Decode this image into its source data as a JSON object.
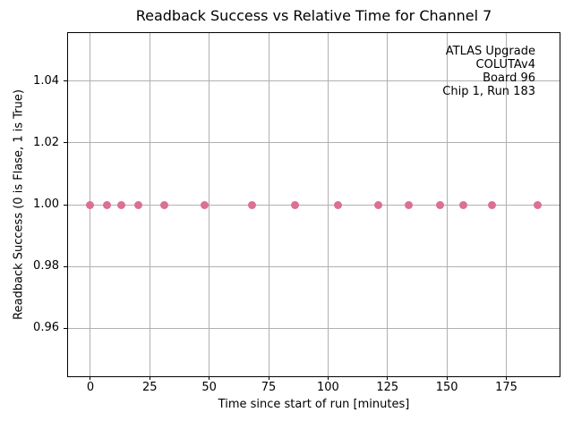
{
  "chart_data": {
    "type": "scatter",
    "title": "Readback Success vs Relative Time for Channel 7",
    "xlabel": "Time since start of run [minutes]",
    "ylabel": "Readback Success (0 is Flase, 1 is True)",
    "x": [
      0,
      7,
      13,
      20,
      31,
      48,
      68,
      86,
      104,
      121,
      134,
      147,
      157,
      169,
      188
    ],
    "y": [
      1,
      1,
      1,
      1,
      1,
      1,
      1,
      1,
      1,
      1,
      1,
      1,
      1,
      1,
      1
    ],
    "xlim": [
      -9.4,
      197.4
    ],
    "ylim": [
      0.9445,
      1.0555
    ],
    "xticks": [
      0,
      25,
      50,
      75,
      100,
      125,
      150,
      175
    ],
    "xtick_labels": [
      "0",
      "25",
      "50",
      "75",
      "100",
      "125",
      "150",
      "175"
    ],
    "yticks": [
      0.96,
      0.98,
      1.0,
      1.02,
      1.04
    ],
    "ytick_labels": [
      "0.96",
      "0.98",
      "1.00",
      "1.02",
      "1.04"
    ],
    "grid": true,
    "legend": "none",
    "marker_color": "#DB7093",
    "grid_color": "#b0b0b0",
    "annotation": "ATLAS Upgrade\nCOLUTAv4\nBoard 96\nChip 1, Run 183",
    "annotation_lines": [
      "ATLAS Upgrade",
      "COLUTAv4",
      "Board 96",
      "Chip 1, Run 183"
    ]
  }
}
